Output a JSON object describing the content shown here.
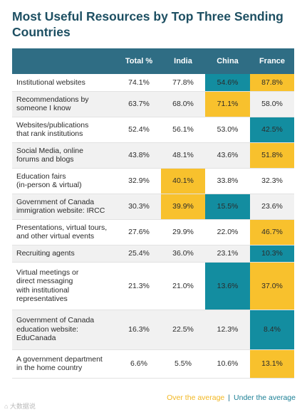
{
  "title": "Most Useful Resources by Top Three Sending Countries",
  "colors": {
    "header": "#2f6d84",
    "over": "#f8c12d",
    "under": "#138da0",
    "title": "#1d4f62"
  },
  "legend": {
    "over": "Over the average",
    "separator": "|",
    "under": "Under the average"
  },
  "watermark": "⌂ 大数据说",
  "chart_data": {
    "type": "table",
    "columns": [
      "",
      "Total %",
      "India",
      "China",
      "France"
    ],
    "rows": [
      {
        "label": [
          "Institutional websites"
        ],
        "values": [
          "74.1%",
          "77.8%",
          "54.6%",
          "87.8%"
        ],
        "highlight": [
          "",
          "",
          "under",
          "over"
        ]
      },
      {
        "label": [
          "Recommendations by",
          "someone I know"
        ],
        "values": [
          "63.7%",
          "68.0%",
          "71.1%",
          "58.0%"
        ],
        "highlight": [
          "",
          "",
          "over",
          ""
        ]
      },
      {
        "label": [
          "Websites/publications",
          "that rank institutions"
        ],
        "values": [
          "52.4%",
          "56.1%",
          "53.0%",
          "42.5%"
        ],
        "highlight": [
          "",
          "",
          "",
          "under"
        ]
      },
      {
        "label": [
          "Social Media, online",
          "forums and blogs"
        ],
        "values": [
          "43.8%",
          "48.1%",
          "43.6%",
          "51.8%"
        ],
        "highlight": [
          "",
          "",
          "",
          "over"
        ]
      },
      {
        "label": [
          "Education fairs",
          "(in-person & virtual)"
        ],
        "values": [
          "32.9%",
          "40.1%",
          "33.8%",
          "32.3%"
        ],
        "highlight": [
          "",
          "over",
          "",
          ""
        ]
      },
      {
        "label": [
          "Government of Canada",
          "immigration website: IRCC"
        ],
        "values": [
          "30.3%",
          "39.9%",
          "15.5%",
          "23.6%"
        ],
        "highlight": [
          "",
          "over",
          "under",
          ""
        ]
      },
      {
        "label": [
          "Presentations, virtual tours,",
          "and other virtual events"
        ],
        "values": [
          "27.6%",
          "29.9%",
          "22.0%",
          "46.7%"
        ],
        "highlight": [
          "",
          "",
          "",
          "over"
        ]
      },
      {
        "label": [
          "Recruiting agents"
        ],
        "values": [
          "25.4%",
          "36.0%",
          "23.1%",
          "10.3%"
        ],
        "highlight": [
          "",
          "",
          "",
          "under"
        ]
      },
      {
        "label": [
          "Virtual meetings or",
          "direct messaging",
          "with institutional",
          "representatives"
        ],
        "values": [
          "21.3%",
          "21.0%",
          "13.6%",
          "37.0%"
        ],
        "highlight": [
          "",
          "",
          "under",
          "over"
        ]
      },
      {
        "label": [
          "Government of Canada",
          "education website:",
          "EduCanada"
        ],
        "values": [
          "16.3%",
          "22.5%",
          "12.3%",
          "8.4%"
        ],
        "highlight": [
          "",
          "",
          "",
          "under"
        ]
      },
      {
        "label": [
          "A government department",
          "in the home country"
        ],
        "values": [
          "6.6%",
          "5.5%",
          "10.6%",
          "13.1%"
        ],
        "highlight": [
          "",
          "",
          "",
          "over"
        ]
      }
    ]
  }
}
